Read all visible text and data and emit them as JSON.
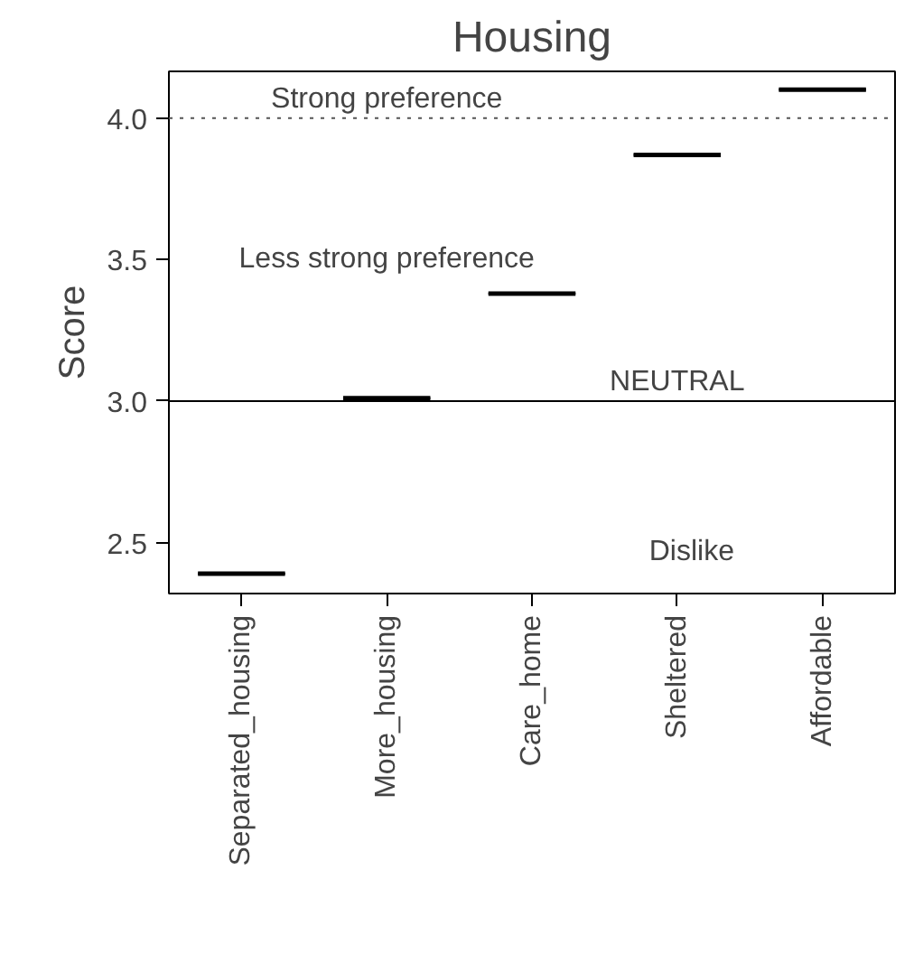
{
  "chart_data": {
    "type": "box",
    "title": "Housing",
    "ylabel": "Score",
    "categories": [
      "Separated_housing",
      "More_housing",
      "Care_home",
      "Sheltered",
      "Affordable"
    ],
    "boxes": [
      {
        "low": 2.39,
        "q1": 2.39,
        "median": 2.39,
        "q3": 2.39,
        "high": 2.39
      },
      {
        "low": 3.01,
        "q1": 3.01,
        "median": 3.01,
        "q3": 3.01,
        "high": 3.01
      },
      {
        "low": 3.38,
        "q1": 3.38,
        "median": 3.38,
        "q3": 3.38,
        "high": 3.38
      },
      {
        "low": 3.87,
        "q1": 3.87,
        "median": 3.87,
        "q3": 3.87,
        "high": 3.87
      },
      {
        "low": 4.1,
        "q1": 4.1,
        "median": 4.1,
        "q3": 4.1,
        "high": 4.1
      }
    ],
    "color": "#000000",
    "ylim": [
      2.32,
      4.165
    ],
    "yticks": [
      2.5,
      {
        "value": 3,
        "label": "3.0"
      },
      3.5,
      {
        "value": 4,
        "label": "4.0"
      }
    ],
    "grid": false,
    "ref_lines": [
      {
        "axis": "y",
        "value": 4,
        "label": "Strong preference",
        "color": "#555555",
        "line_style": "dotted"
      },
      {
        "axis": "y",
        "value": 3,
        "label": "NEUTRAL",
        "color": "#000000",
        "line_style": "solid"
      }
    ],
    "annotations": [
      "Less strong preference",
      "Dislike"
    ]
  }
}
